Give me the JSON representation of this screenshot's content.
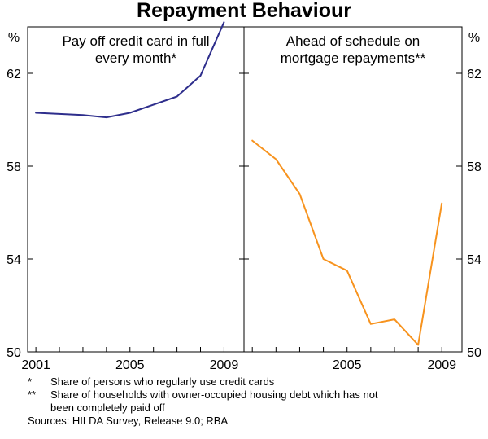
{
  "title": "Repayment Behaviour",
  "unit_left": "%",
  "unit_right": "%",
  "chart_data": [
    {
      "type": "line",
      "title_lines": [
        "Pay off credit card in full",
        "every month*"
      ],
      "color": "#2e2e8c",
      "xlim": [
        2000.65,
        2009.85
      ],
      "ylim": [
        50,
        64
      ],
      "x_ticks": [
        2001,
        2005,
        2009
      ],
      "x_tick_labels": [
        "2001",
        "2005",
        "2009"
      ],
      "y_ticks": [
        50,
        54,
        58,
        62
      ],
      "y_tick_labels": [
        "50",
        "54",
        "58",
        "62"
      ],
      "x": [
        2001,
        2003,
        2004,
        2005,
        2007,
        2008,
        2009
      ],
      "y": [
        60.3,
        60.2,
        60.1,
        60.3,
        61.0,
        61.9,
        64.2
      ]
    },
    {
      "type": "line",
      "title_lines": [
        "Ahead of schedule on",
        "mortgage repayments**"
      ],
      "color": "#f7931e",
      "xlim": [
        2000.65,
        2009.85
      ],
      "ylim": [
        50,
        64
      ],
      "x_ticks": [
        2005,
        2009
      ],
      "x_tick_labels": [
        "2005",
        "2009"
      ],
      "y_ticks": [
        50,
        54,
        58,
        62
      ],
      "y_tick_labels": [
        "50",
        "54",
        "58",
        "62"
      ],
      "x": [
        2001,
        2002,
        2003,
        2004,
        2005,
        2006,
        2007,
        2008,
        2009
      ],
      "y": [
        59.1,
        58.3,
        56.8,
        54.0,
        53.5,
        51.2,
        51.4,
        50.3,
        56.4
      ]
    }
  ],
  "footnotes": [
    {
      "mark": "*",
      "lines": [
        "Share of persons who regularly use credit cards"
      ]
    },
    {
      "mark": "**",
      "lines": [
        "Share of households with owner-occupied housing debt which has not",
        "been completely paid off"
      ]
    }
  ],
  "sources": "Sources: HILDA Survey,  Release 9.0; RBA"
}
